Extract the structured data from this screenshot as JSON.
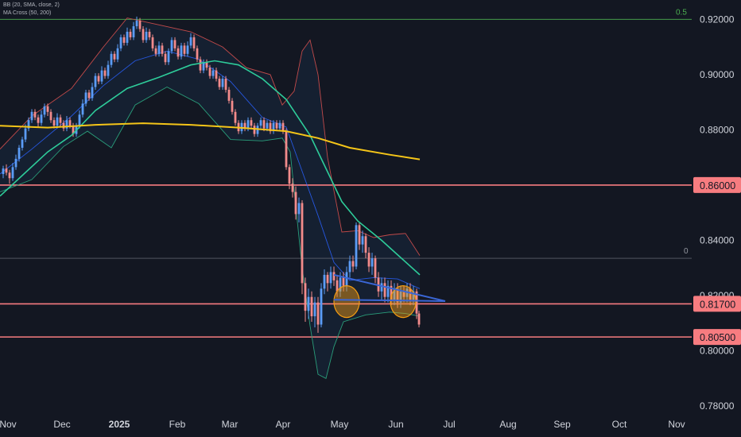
{
  "indicators": [
    "BB (20, SMA, close, 2)",
    "MA Cross (50, 200)"
  ],
  "colors": {
    "background": "#131722",
    "up": "#5b9cf6",
    "down": "#f28b8b",
    "level": "#f77c80",
    "fib": "#4caf50",
    "ma50": "#2ecc9a",
    "ma200": "#f5c518",
    "bb_upper": "#c24a4a",
    "bb_lower": "#2a9d7a",
    "bb_basis": "#2962ff",
    "trendline": "#3a66d6",
    "circle": "#f39c12"
  },
  "chart_data": {
    "type": "candlestick",
    "ylim": [
      0.778,
      0.927
    ],
    "y_ticks": [
      "0.92000",
      "0.90000",
      "0.88000",
      "0.86000",
      "0.84000",
      "0.82000",
      "0.80000",
      "0.78000"
    ],
    "x_ticks": [
      "Nov",
      "Dec",
      "2025",
      "Feb",
      "Mar",
      "Apr",
      "May",
      "Jun",
      "Jul",
      "Aug",
      "Sep",
      "Oct",
      "Nov"
    ],
    "fib_lines": [
      {
        "label": "0.5",
        "value": 0.92
      },
      {
        "label": "0",
        "value": 0.8335
      }
    ],
    "levels": [
      {
        "label": "0.86000",
        "value": 0.86
      },
      {
        "label": "0.81700",
        "value": 0.817
      },
      {
        "label": "0.80500",
        "value": 0.805
      }
    ],
    "trend_shape": [
      {
        "from": [
          "May",
          0.8275
        ],
        "to": [
          "Jun 20",
          0.818
        ]
      },
      {
        "from": [
          "May",
          0.8185
        ],
        "to": [
          "Jun 20",
          0.818
        ]
      }
    ],
    "highlight_circles": [
      {
        "center": [
          "May",
          0.8178
        ]
      },
      {
        "center": [
          "Jun",
          0.8178
        ]
      }
    ],
    "ma200_line": [
      [
        0,
        0.8815
      ],
      [
        60,
        0.8808
      ],
      [
        120,
        0.8818
      ],
      [
        180,
        0.8824
      ],
      [
        240,
        0.8818
      ],
      [
        300,
        0.8808
      ],
      [
        360,
        0.8795
      ],
      [
        400,
        0.877
      ],
      [
        440,
        0.8735
      ],
      [
        490,
        0.871
      ],
      [
        528,
        0.8693
      ]
    ],
    "ma50_line": [
      [
        0,
        0.856
      ],
      [
        30,
        0.864
      ],
      [
        60,
        0.872
      ],
      [
        90,
        0.878
      ],
      [
        120,
        0.887
      ],
      [
        160,
        0.895
      ],
      [
        200,
        0.899
      ],
      [
        240,
        0.9035
      ],
      [
        270,
        0.905
      ],
      [
        300,
        0.9035
      ],
      [
        330,
        0.8985
      ],
      [
        360,
        0.891
      ],
      [
        390,
        0.878
      ],
      [
        410,
        0.866
      ],
      [
        430,
        0.854
      ],
      [
        450,
        0.847
      ],
      [
        480,
        0.84
      ],
      [
        505,
        0.8335
      ],
      [
        528,
        0.8275
      ]
    ],
    "bb_upper_line": [
      [
        0,
        0.873
      ],
      [
        40,
        0.885
      ],
      [
        90,
        0.895
      ],
      [
        130,
        0.91
      ],
      [
        160,
        0.9205
      ],
      [
        200,
        0.918
      ],
      [
        240,
        0.9155
      ],
      [
        280,
        0.91
      ],
      [
        310,
        0.9025
      ],
      [
        340,
        0.9
      ],
      [
        355,
        0.889
      ],
      [
        370,
        0.894
      ],
      [
        380,
        0.9085
      ],
      [
        390,
        0.9125
      ],
      [
        400,
        0.9
      ],
      [
        412,
        0.87
      ],
      [
        430,
        0.843
      ],
      [
        450,
        0.8435
      ],
      [
        470,
        0.841
      ],
      [
        490,
        0.842
      ],
      [
        510,
        0.8425
      ],
      [
        528,
        0.8345
      ]
    ],
    "bb_lower_line": [
      [
        0,
        0.8575
      ],
      [
        40,
        0.862
      ],
      [
        80,
        0.874
      ],
      [
        110,
        0.8795
      ],
      [
        140,
        0.8735
      ],
      [
        170,
        0.889
      ],
      [
        210,
        0.8955
      ],
      [
        250,
        0.8895
      ],
      [
        290,
        0.8765
      ],
      [
        330,
        0.876
      ],
      [
        355,
        0.877
      ],
      [
        365,
        0.872
      ],
      [
        380,
        0.83
      ],
      [
        390,
        0.809
      ],
      [
        400,
        0.7915
      ],
      [
        410,
        0.79
      ],
      [
        420,
        0.8015
      ],
      [
        432,
        0.8105
      ],
      [
        460,
        0.813
      ],
      [
        490,
        0.814
      ],
      [
        510,
        0.8135
      ],
      [
        528,
        0.8125
      ]
    ],
    "bb_basis_line": [
      [
        0,
        0.864
      ],
      [
        40,
        0.873
      ],
      [
        90,
        0.885
      ],
      [
        130,
        0.896
      ],
      [
        170,
        0.905
      ],
      [
        210,
        0.9085
      ],
      [
        250,
        0.9055
      ],
      [
        290,
        0.8975
      ],
      [
        330,
        0.8845
      ],
      [
        360,
        0.881
      ],
      [
        380,
        0.865
      ],
      [
        400,
        0.849
      ],
      [
        420,
        0.832
      ],
      [
        440,
        0.8255
      ],
      [
        470,
        0.8265
      ],
      [
        500,
        0.826
      ],
      [
        528,
        0.8225
      ]
    ],
    "candles": [
      [
        4,
        0.864,
        0.866,
        0.867,
        0.8625
      ],
      [
        8,
        0.866,
        0.8645,
        0.8675,
        0.8635
      ],
      [
        12,
        0.8645,
        0.8625,
        0.8655,
        0.8605
      ],
      [
        16,
        0.8625,
        0.8665,
        0.868,
        0.8615
      ],
      [
        20,
        0.8665,
        0.8695,
        0.871,
        0.8655
      ],
      [
        24,
        0.8695,
        0.8735,
        0.8745,
        0.8685
      ],
      [
        28,
        0.8735,
        0.8765,
        0.8775,
        0.8725
      ],
      [
        32,
        0.8765,
        0.8805,
        0.882,
        0.8755
      ],
      [
        36,
        0.8805,
        0.8835,
        0.8845,
        0.8795
      ],
      [
        40,
        0.8835,
        0.8865,
        0.8875,
        0.8825
      ],
      [
        44,
        0.8865,
        0.8845,
        0.8875,
        0.8835
      ],
      [
        48,
        0.8845,
        0.8825,
        0.8855,
        0.881
      ],
      [
        52,
        0.8825,
        0.8855,
        0.887,
        0.8815
      ],
      [
        56,
        0.8855,
        0.8885,
        0.8895,
        0.8845
      ],
      [
        60,
        0.8885,
        0.8865,
        0.8895,
        0.885
      ],
      [
        64,
        0.8865,
        0.8835,
        0.8875,
        0.8825
      ],
      [
        68,
        0.8835,
        0.8815,
        0.8845,
        0.8805
      ],
      [
        72,
        0.8815,
        0.8845,
        0.886,
        0.8805
      ],
      [
        76,
        0.8845,
        0.8825,
        0.8855,
        0.881
      ],
      [
        80,
        0.8825,
        0.8805,
        0.8835,
        0.8795
      ],
      [
        84,
        0.8805,
        0.8835,
        0.885,
        0.8795
      ],
      [
        88,
        0.8835,
        0.8815,
        0.8845,
        0.8805
      ],
      [
        92,
        0.8815,
        0.8785,
        0.8825,
        0.8775
      ],
      [
        96,
        0.8785,
        0.8815,
        0.8825,
        0.8775
      ],
      [
        100,
        0.8815,
        0.8855,
        0.887,
        0.8805
      ],
      [
        104,
        0.8855,
        0.8895,
        0.891,
        0.8845
      ],
      [
        108,
        0.8895,
        0.8935,
        0.8945,
        0.8885
      ],
      [
        112,
        0.8935,
        0.8915,
        0.8945,
        0.8905
      ],
      [
        116,
        0.8915,
        0.8955,
        0.897,
        0.8905
      ],
      [
        120,
        0.8955,
        0.8995,
        0.9005,
        0.8945
      ],
      [
        124,
        0.8995,
        0.8975,
        0.9005,
        0.8965
      ],
      [
        128,
        0.8975,
        0.9015,
        0.903,
        0.8965
      ],
      [
        132,
        0.9015,
        0.8995,
        0.9025,
        0.8985
      ],
      [
        136,
        0.8995,
        0.9035,
        0.905,
        0.8985
      ],
      [
        140,
        0.9035,
        0.9075,
        0.9085,
        0.9025
      ],
      [
        144,
        0.9075,
        0.9055,
        0.9085,
        0.9045
      ],
      [
        148,
        0.9055,
        0.9095,
        0.911,
        0.9045
      ],
      [
        152,
        0.9095,
        0.9135,
        0.9145,
        0.9085
      ],
      [
        156,
        0.9135,
        0.9115,
        0.9145,
        0.9105
      ],
      [
        160,
        0.9115,
        0.9155,
        0.917,
        0.9105
      ],
      [
        164,
        0.9155,
        0.9135,
        0.9165,
        0.9125
      ],
      [
        168,
        0.9135,
        0.9175,
        0.919,
        0.9125
      ],
      [
        172,
        0.9175,
        0.9195,
        0.921,
        0.9165
      ],
      [
        176,
        0.9195,
        0.9165,
        0.9205,
        0.9155
      ],
      [
        180,
        0.9165,
        0.9125,
        0.9175,
        0.9115
      ],
      [
        184,
        0.9125,
        0.9155,
        0.917,
        0.9115
      ],
      [
        188,
        0.9155,
        0.9135,
        0.9165,
        0.9125
      ],
      [
        192,
        0.9135,
        0.9095,
        0.9145,
        0.9085
      ],
      [
        196,
        0.9095,
        0.9075,
        0.9105,
        0.9065
      ],
      [
        200,
        0.9075,
        0.9105,
        0.912,
        0.9065
      ],
      [
        204,
        0.9105,
        0.9075,
        0.9115,
        0.9065
      ],
      [
        208,
        0.9075,
        0.9045,
        0.9085,
        0.9035
      ],
      [
        212,
        0.9045,
        0.9085,
        0.9095,
        0.9035
      ],
      [
        216,
        0.9085,
        0.9125,
        0.9135,
        0.9075
      ],
      [
        220,
        0.9125,
        0.9095,
        0.9135,
        0.9085
      ],
      [
        224,
        0.9095,
        0.9065,
        0.9105,
        0.9055
      ],
      [
        228,
        0.9065,
        0.9105,
        0.9115,
        0.9055
      ],
      [
        232,
        0.9105,
        0.9075,
        0.9115,
        0.9065
      ],
      [
        236,
        0.9075,
        0.9105,
        0.912,
        0.9065
      ],
      [
        240,
        0.9105,
        0.9135,
        0.915,
        0.9095
      ],
      [
        244,
        0.9135,
        0.9095,
        0.9145,
        0.9085
      ],
      [
        248,
        0.9095,
        0.9055,
        0.9105,
        0.9045
      ],
      [
        252,
        0.9055,
        0.9015,
        0.9065,
        0.9005
      ],
      [
        256,
        0.9015,
        0.9045,
        0.9055,
        0.9005
      ],
      [
        260,
        0.9045,
        0.9025,
        0.9055,
        0.9015
      ],
      [
        264,
        0.9025,
        0.8995,
        0.9035,
        0.8985
      ],
      [
        268,
        0.8995,
        0.9015,
        0.9025,
        0.8985
      ],
      [
        272,
        0.9015,
        0.8985,
        0.9025,
        0.8975
      ],
      [
        276,
        0.8985,
        0.8955,
        0.8995,
        0.8945
      ],
      [
        280,
        0.8955,
        0.8985,
        0.8995,
        0.8945
      ],
      [
        284,
        0.8985,
        0.8945,
        0.8995,
        0.8935
      ],
      [
        288,
        0.8945,
        0.8905,
        0.8955,
        0.8895
      ],
      [
        292,
        0.8905,
        0.8865,
        0.8915,
        0.8855
      ],
      [
        296,
        0.8865,
        0.8825,
        0.8875,
        0.8815
      ],
      [
        300,
        0.8825,
        0.8795,
        0.8835,
        0.8785
      ],
      [
        304,
        0.8795,
        0.8825,
        0.8835,
        0.8785
      ],
      [
        308,
        0.8825,
        0.8805,
        0.8835,
        0.8795
      ],
      [
        312,
        0.8805,
        0.8835,
        0.8845,
        0.8795
      ],
      [
        316,
        0.8835,
        0.8815,
        0.8845,
        0.8805
      ],
      [
        320,
        0.8815,
        0.8785,
        0.8825,
        0.8775
      ],
      [
        324,
        0.8785,
        0.8815,
        0.8825,
        0.8775
      ],
      [
        328,
        0.8815,
        0.8835,
        0.8845,
        0.8805
      ],
      [
        332,
        0.8835,
        0.8805,
        0.8845,
        0.8795
      ],
      [
        336,
        0.8805,
        0.8825,
        0.8835,
        0.8795
      ],
      [
        340,
        0.8825,
        0.8795,
        0.8835,
        0.8785
      ],
      [
        344,
        0.8795,
        0.8825,
        0.8835,
        0.8785
      ],
      [
        348,
        0.8825,
        0.8805,
        0.8835,
        0.8795
      ],
      [
        352,
        0.8805,
        0.8825,
        0.8835,
        0.8795
      ],
      [
        356,
        0.8825,
        0.8795,
        0.8835,
        0.8785
      ],
      [
        360,
        0.8795,
        0.8665,
        0.8805,
        0.8655
      ],
      [
        364,
        0.8665,
        0.8605,
        0.8675,
        0.8585
      ],
      [
        368,
        0.8605,
        0.8575,
        0.8625,
        0.8555
      ],
      [
        372,
        0.8575,
        0.8495,
        0.8595,
        0.8475
      ],
      [
        376,
        0.8495,
        0.8535,
        0.8555,
        0.8465
      ],
      [
        380,
        0.8535,
        0.8245,
        0.8545,
        0.8205
      ],
      [
        384,
        0.8245,
        0.8145,
        0.8265,
        0.8105
      ],
      [
        388,
        0.8145,
        0.8195,
        0.8225,
        0.8115
      ],
      [
        392,
        0.8195,
        0.8125,
        0.8215,
        0.8105
      ],
      [
        396,
        0.8125,
        0.8175,
        0.8195,
        0.8085
      ],
      [
        400,
        0.8175,
        0.8095,
        0.8195,
        0.8065
      ],
      [
        404,
        0.8095,
        0.8225,
        0.8245,
        0.8085
      ],
      [
        408,
        0.8225,
        0.8275,
        0.8295,
        0.8205
      ],
      [
        412,
        0.8275,
        0.8245,
        0.8285,
        0.8215
      ],
      [
        416,
        0.8245,
        0.8285,
        0.8305,
        0.8225
      ],
      [
        420,
        0.8285,
        0.8255,
        0.8305,
        0.8235
      ],
      [
        424,
        0.8255,
        0.8215,
        0.8275,
        0.8195
      ],
      [
        428,
        0.8215,
        0.8265,
        0.8285,
        0.8195
      ],
      [
        432,
        0.8265,
        0.8235,
        0.8285,
        0.8215
      ],
      [
        436,
        0.8235,
        0.8285,
        0.8305,
        0.8215
      ],
      [
        440,
        0.8285,
        0.8325,
        0.8345,
        0.8265
      ],
      [
        444,
        0.8325,
        0.8305,
        0.8345,
        0.8285
      ],
      [
        448,
        0.8305,
        0.8455,
        0.8465,
        0.8295
      ],
      [
        452,
        0.8455,
        0.8385,
        0.8465,
        0.8365
      ],
      [
        456,
        0.8385,
        0.8415,
        0.8435,
        0.8355
      ],
      [
        460,
        0.8415,
        0.8355,
        0.8425,
        0.8335
      ],
      [
        464,
        0.8355,
        0.8305,
        0.8375,
        0.8285
      ],
      [
        468,
        0.8305,
        0.8335,
        0.8355,
        0.8275
      ],
      [
        472,
        0.8335,
        0.8265,
        0.8345,
        0.8245
      ],
      [
        476,
        0.8265,
        0.8215,
        0.8285,
        0.8195
      ],
      [
        480,
        0.8215,
        0.8245,
        0.8265,
        0.8185
      ],
      [
        484,
        0.8245,
        0.8195,
        0.8265,
        0.8175
      ],
      [
        488,
        0.8195,
        0.8235,
        0.8255,
        0.8175
      ],
      [
        492,
        0.8235,
        0.8185,
        0.8255,
        0.8165
      ],
      [
        496,
        0.8185,
        0.8225,
        0.8245,
        0.8165
      ],
      [
        500,
        0.8225,
        0.8175,
        0.8245,
        0.8155
      ],
      [
        504,
        0.8175,
        0.8215,
        0.8235,
        0.8155
      ],
      [
        508,
        0.8215,
        0.8195,
        0.8235,
        0.8175
      ],
      [
        512,
        0.8195,
        0.8225,
        0.8245,
        0.8175
      ],
      [
        516,
        0.8225,
        0.8185,
        0.8245,
        0.8165
      ],
      [
        520,
        0.8185,
        0.8215,
        0.8235,
        0.8165
      ],
      [
        524,
        0.8215,
        0.8135,
        0.8225,
        0.8115
      ],
      [
        527,
        0.8135,
        0.8095,
        0.8145,
        0.8085
      ]
    ]
  }
}
